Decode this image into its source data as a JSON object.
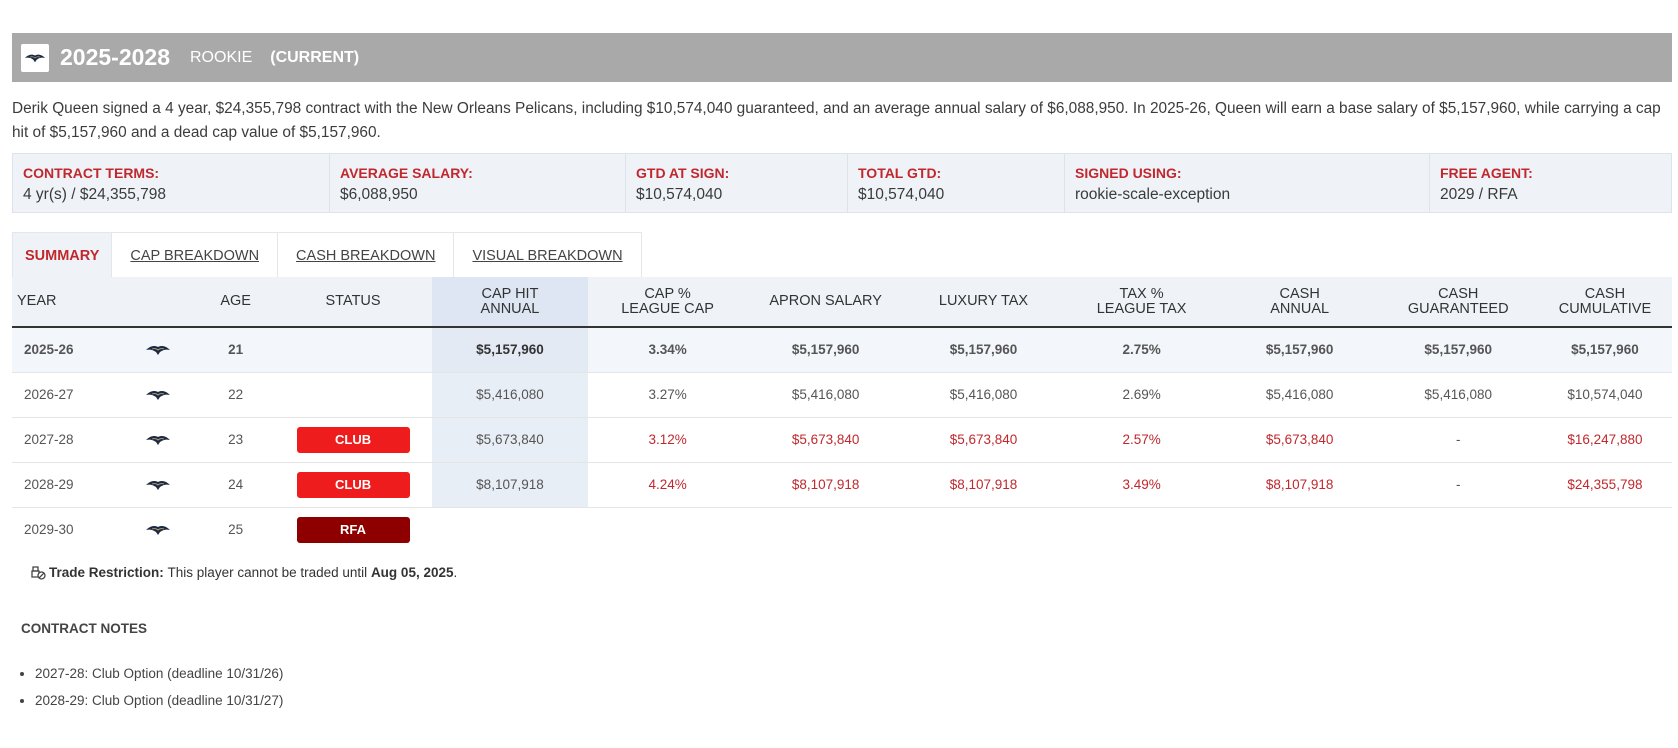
{
  "header": {
    "years": "2025-2028",
    "type": "ROOKIE",
    "current": "(CURRENT)",
    "logo_icon": "pelicans-logo-icon"
  },
  "description": "Derik Queen signed a 4 year, $24,355,798 contract with the New Orleans Pelicans, including $10,574,040 guaranteed, and an average annual salary of $6,088,950. In 2025-26, Queen will earn a base salary of $5,157,960, while carrying a cap hit of $5,157,960 and a dead cap value of $5,157,960.",
  "terms": [
    {
      "label": "CONTRACT TERMS:",
      "value": "4 yr(s) / $24,355,798"
    },
    {
      "label": "AVERAGE SALARY:",
      "value": "$6,088,950"
    },
    {
      "label": "GTD AT SIGN:",
      "value": "$10,574,040"
    },
    {
      "label": "TOTAL GTD:",
      "value": "$10,574,040"
    },
    {
      "label": "SIGNED USING:",
      "value": "rookie-scale-exception"
    },
    {
      "label": "FREE AGENT:",
      "value": "2029 / RFA"
    }
  ],
  "tabs": [
    "SUMMARY",
    "CAP BREAKDOWN",
    "CASH BREAKDOWN",
    "VISUAL BREAKDOWN"
  ],
  "table": {
    "headers": {
      "year": "YEAR",
      "age": "AGE",
      "status": "STATUS",
      "cap_hit_1": "CAP HIT",
      "cap_hit_2": "ANNUAL",
      "cap_pct_1": "CAP %",
      "cap_pct_2": "LEAGUE CAP",
      "apron": "APRON SALARY",
      "lux": "LUXURY TAX",
      "tax_pct_1": "TAX %",
      "tax_pct_2": "LEAGUE TAX",
      "cash_1": "CASH",
      "cash_2": "ANNUAL",
      "cash_gtd_1": "CASH",
      "cash_gtd_2": "GUARANTEED",
      "cash_cum_1": "CASH",
      "cash_cum_2": "CUMULATIVE"
    },
    "rows": [
      {
        "year": "2025-26",
        "age": "21",
        "status": "",
        "cap_hit": "$5,157,960",
        "cap_pct": "3.34%",
        "apron": "$5,157,960",
        "lux": "$5,157,960",
        "tax_pct": "2.75%",
        "cash": "$5,157,960",
        "cash_gtd": "$5,157,960",
        "cash_cum": "$5,157,960"
      },
      {
        "year": "2026-27",
        "age": "22",
        "status": "",
        "cap_hit": "$5,416,080",
        "cap_pct": "3.27%",
        "apron": "$5,416,080",
        "lux": "$5,416,080",
        "tax_pct": "2.69%",
        "cash": "$5,416,080",
        "cash_gtd": "$5,416,080",
        "cash_cum": "$10,574,040"
      },
      {
        "year": "2027-28",
        "age": "23",
        "status": "CLUB",
        "cap_hit": "$5,673,840",
        "cap_pct": "3.12%",
        "apron": "$5,673,840",
        "lux": "$5,673,840",
        "tax_pct": "2.57%",
        "cash": "$5,673,840",
        "cash_gtd": "-",
        "cash_cum": "$16,247,880"
      },
      {
        "year": "2028-29",
        "age": "24",
        "status": "CLUB",
        "cap_hit": "$8,107,918",
        "cap_pct": "4.24%",
        "apron": "$8,107,918",
        "lux": "$8,107,918",
        "tax_pct": "3.49%",
        "cash": "$8,107,918",
        "cash_gtd": "-",
        "cash_cum": "$24,355,798"
      },
      {
        "year": "2029-30",
        "age": "25",
        "status": "RFA"
      }
    ]
  },
  "trade": {
    "label": "Trade Restriction:",
    "text": "This player cannot be traded until",
    "date": "Aug 05, 2025",
    "end": "."
  },
  "notes": {
    "title": "CONTRACT NOTES",
    "items": [
      "2027-28: Club Option (deadline 10/31/26)",
      "2028-29: Club Option (deadline 10/31/27)"
    ]
  },
  "colors": {
    "accent_red": "#c0282d",
    "club_badge": "#ee1c1c",
    "rfa_badge": "#8e0000",
    "header_gray": "#a9a9a9"
  }
}
